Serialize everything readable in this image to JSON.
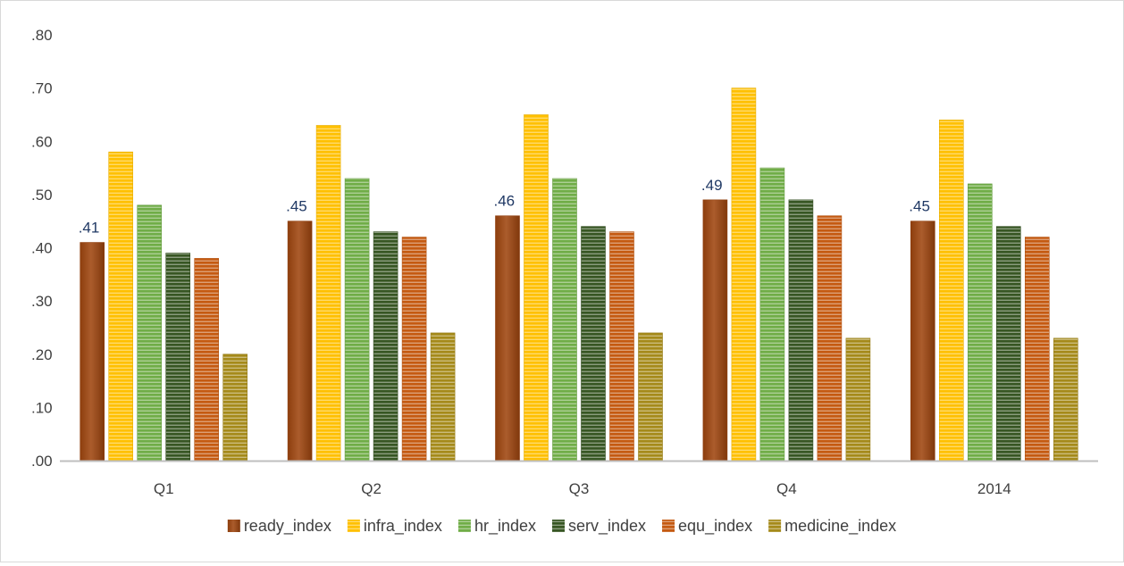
{
  "chart_data": {
    "type": "bar",
    "title": "",
    "xlabel": "",
    "ylabel": "",
    "ylim": [
      0,
      0.8
    ],
    "yticks": [
      0,
      0.1,
      0.2,
      0.3,
      0.4,
      0.5,
      0.6,
      0.7,
      0.8
    ],
    "ytick_labels": [
      ".00",
      ".10",
      ".20",
      ".30",
      ".40",
      ".50",
      ".60",
      ".70",
      ".80"
    ],
    "grid": false,
    "legend_position": "bottom",
    "categories": [
      "Q1",
      "Q2",
      "Q3",
      "Q4",
      "2014"
    ],
    "series": [
      {
        "name": "ready_index",
        "color": "#a0460f",
        "pattern": "solid",
        "values": [
          0.41,
          0.45,
          0.46,
          0.49,
          0.45
        ],
        "data_labels": [
          ".41",
          ".45",
          ".46",
          ".49",
          ".45"
        ]
      },
      {
        "name": "infra_index",
        "color": "#ffc000",
        "pattern": "stripes",
        "values": [
          0.58,
          0.63,
          0.65,
          0.7,
          0.64
        ]
      },
      {
        "name": "hr_index",
        "color": "#70ad47",
        "pattern": "stripes",
        "values": [
          0.48,
          0.53,
          0.53,
          0.55,
          0.52
        ]
      },
      {
        "name": "serv_index",
        "color": "#375623",
        "pattern": "stripes",
        "values": [
          0.39,
          0.43,
          0.44,
          0.49,
          0.44
        ]
      },
      {
        "name": "equ_index",
        "color": "#c55a11",
        "pattern": "stripes",
        "values": [
          0.38,
          0.42,
          0.43,
          0.46,
          0.42
        ]
      },
      {
        "name": "medicine_index",
        "color": "#a58a1a",
        "pattern": "stripes",
        "values": [
          0.2,
          0.24,
          0.24,
          0.23,
          0.23
        ]
      }
    ]
  }
}
